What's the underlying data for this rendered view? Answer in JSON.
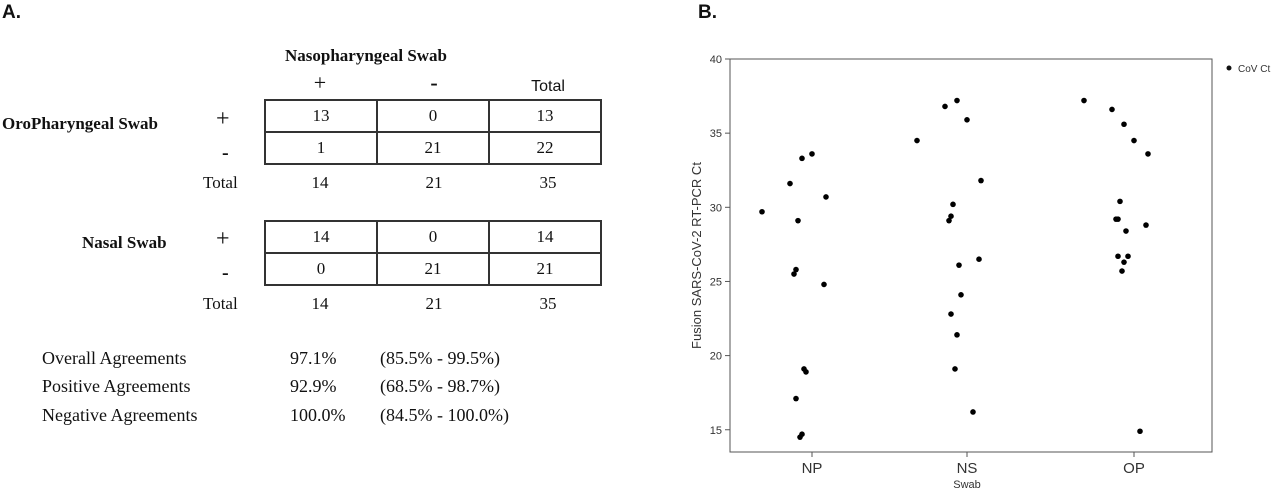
{
  "panel_a": {
    "label": "A.",
    "column_header": "Nasopharyngeal Swab",
    "col_plus": "+",
    "col_minus": "-",
    "col_total": "Total",
    "oro": {
      "row_label": "OroPharyngeal Swab",
      "plus": "+",
      "minus": "-",
      "total_label": "Total",
      "cells": [
        [
          "13",
          "0",
          "13"
        ],
        [
          "1",
          "21",
          "22"
        ]
      ],
      "totals": [
        "14",
        "21",
        "35"
      ]
    },
    "nasal": {
      "row_label": "Nasal Swab",
      "plus": "+",
      "minus": "-",
      "total_label": "Total",
      "cells": [
        [
          "14",
          "0",
          "14"
        ],
        [
          "0",
          "21",
          "21"
        ]
      ],
      "totals": [
        "14",
        "21",
        "35"
      ]
    },
    "agreements": [
      {
        "label": "Overall Agreements",
        "pct": "97.1%",
        "ci": "(85.5% - 99.5%)"
      },
      {
        "label": "Positive Agreements",
        "pct": "92.9%",
        "ci": "(68.5% - 98.7%)"
      },
      {
        "label": "Negative Agreements",
        "pct": "100.0%",
        "ci": "(84.5% - 100.0%)"
      }
    ]
  },
  "panel_b": {
    "label": "B.",
    "legend": "CoV Ct"
  },
  "chart_data": {
    "type": "scatter",
    "title": "",
    "xlabel": "Swab",
    "ylabel": "Fusion SARS-CoV-2 RT-PCR Ct",
    "categories": [
      "NP",
      "NS",
      "OP"
    ],
    "ylim": [
      13.5,
      40
    ],
    "yticks": [
      15,
      20,
      25,
      30,
      35,
      40
    ],
    "grid": false,
    "legend_position": "top-right",
    "series": [
      {
        "name": "CoV Ct",
        "points": [
          {
            "x": "NP",
            "y": 29.7
          },
          {
            "x": "NP",
            "y": 31.6
          },
          {
            "x": "NP",
            "y": 33.3
          },
          {
            "x": "NP",
            "y": 33.6
          },
          {
            "x": "NP",
            "y": 30.7
          },
          {
            "x": "NP",
            "y": 29.1
          },
          {
            "x": "NP",
            "y": 25.8
          },
          {
            "x": "NP",
            "y": 25.5
          },
          {
            "x": "NP",
            "y": 24.8
          },
          {
            "x": "NP",
            "y": 19.1
          },
          {
            "x": "NP",
            "y": 18.9
          },
          {
            "x": "NP",
            "y": 17.1
          },
          {
            "x": "NP",
            "y": 14.7
          },
          {
            "x": "NP",
            "y": 14.5
          },
          {
            "x": "NS",
            "y": 34.5
          },
          {
            "x": "NS",
            "y": 36.8
          },
          {
            "x": "NS",
            "y": 37.2
          },
          {
            "x": "NS",
            "y": 35.9
          },
          {
            "x": "NS",
            "y": 31.8
          },
          {
            "x": "NS",
            "y": 30.2
          },
          {
            "x": "NS",
            "y": 29.4
          },
          {
            "x": "NS",
            "y": 29.1
          },
          {
            "x": "NS",
            "y": 26.5
          },
          {
            "x": "NS",
            "y": 26.1
          },
          {
            "x": "NS",
            "y": 24.1
          },
          {
            "x": "NS",
            "y": 22.8
          },
          {
            "x": "NS",
            "y": 21.4
          },
          {
            "x": "NS",
            "y": 19.1
          },
          {
            "x": "NS",
            "y": 16.2
          },
          {
            "x": "OP",
            "y": 37.2
          },
          {
            "x": "OP",
            "y": 36.6
          },
          {
            "x": "OP",
            "y": 35.6
          },
          {
            "x": "OP",
            "y": 34.5
          },
          {
            "x": "OP",
            "y": 33.6
          },
          {
            "x": "OP",
            "y": 30.4
          },
          {
            "x": "OP",
            "y": 29.2
          },
          {
            "x": "OP",
            "y": 29.2
          },
          {
            "x": "OP",
            "y": 28.8
          },
          {
            "x": "OP",
            "y": 28.4
          },
          {
            "x": "OP",
            "y": 26.7
          },
          {
            "x": "OP",
            "y": 26.7
          },
          {
            "x": "OP",
            "y": 26.3
          },
          {
            "x": "OP",
            "y": 25.7
          },
          {
            "x": "OP",
            "y": 14.9
          }
        ]
      }
    ]
  }
}
